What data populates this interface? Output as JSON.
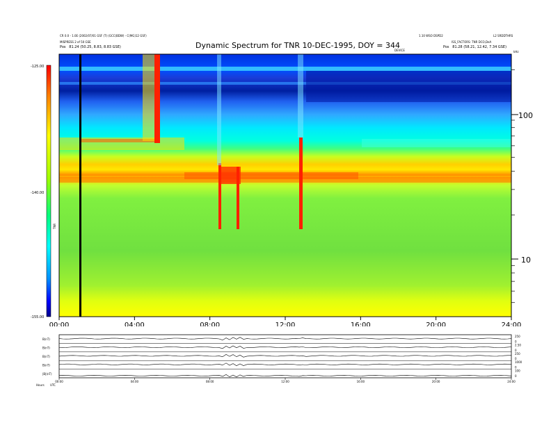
{
  "header": {
    "title": "Dynamic Spectrum for TNR 10-DEC-1995, DOY = 344",
    "left_line1": "CR 0.0 - 1.0E (2002/07/01 GSF (T) (GCC(BDW) - C(MG)12 GSF)",
    "left_line2": "MISPRESS 2 of 50 GSE",
    "left_pos_label": "Pos",
    "left_pos_value": "81.24 (50.25, 8.83, 8.83 GSE)",
    "right_line1": "1.10 WSO DSPD2",
    "right_line1b": "L2 SRDDTHRS",
    "right_line2": "ISS_FACTORS: TNR DCO,DeA",
    "right_pos_label": "Pos",
    "right_pos_value": "81.28 (58.21, 12.42, 7.34 GSE)",
    "center_small": "DEVICE",
    "freq_unit": "kHz"
  },
  "chart_data": {
    "type": "heatmap",
    "title": "Dynamic Spectrum for TNR 10-DEC-1995, DOY = 344",
    "x_ticks": [
      "00:00",
      "04:00",
      "08:00",
      "12:00",
      "16:00",
      "20:00",
      "24:00"
    ],
    "x_range_hours": [
      0,
      24
    ],
    "y_axis_right": {
      "scale": "log",
      "unit": "kHz",
      "ticks": [
        100,
        10
      ],
      "range_khz": [
        4,
        256
      ]
    },
    "colorbar": {
      "ticks": [
        "-125.00",
        "-140.00",
        "-155.00"
      ],
      "range_db": [
        -155,
        -125
      ],
      "label": "TNR",
      "colors": [
        "#00008b",
        "#0000ff",
        "#00a0ff",
        "#00ffff",
        "#7fff00",
        "#ffff00",
        "#ffa500",
        "#ff0000"
      ]
    },
    "features": [
      {
        "name": "background_band",
        "freq_khz": 30,
        "level": "orange-yellow",
        "hours": [
          0,
          24
        ]
      },
      {
        "name": "plasma_line",
        "freq_khz": 22,
        "level": "red",
        "hours": [
          0,
          24
        ]
      },
      {
        "name": "burst_vertical",
        "hours": [
          5.2,
          5.5
        ],
        "freq_khz": [
          60,
          256
        ]
      },
      {
        "name": "burst_vertical",
        "hours": [
          8.5,
          9.7
        ],
        "freq_khz": [
          15,
          40
        ]
      },
      {
        "name": "burst_vertical",
        "hours": [
          12.8,
          13.2
        ],
        "freq_khz": [
          15,
          60
        ]
      },
      {
        "name": "data_gap_line",
        "hours": 1.2
      }
    ]
  },
  "lower_panels": {
    "labels": [
      "B(nT)",
      "B(nT)",
      "B(nT)",
      "B(nT)",
      "|B|(nT)"
    ],
    "x_ticks": [
      "00:00",
      "04:00",
      "08:00",
      "12:00",
      "16:00",
      "20:00",
      "24:00"
    ],
    "right_ticks": [
      [
        "250",
        "0"
      ],
      [
        "2.50",
        "0"
      ],
      [
        "250",
        "0"
      ],
      [
        "1000",
        "0"
      ],
      [
        "100",
        "0"
      ]
    ],
    "footer_left": "Hours",
    "footer_right": "UTC"
  }
}
